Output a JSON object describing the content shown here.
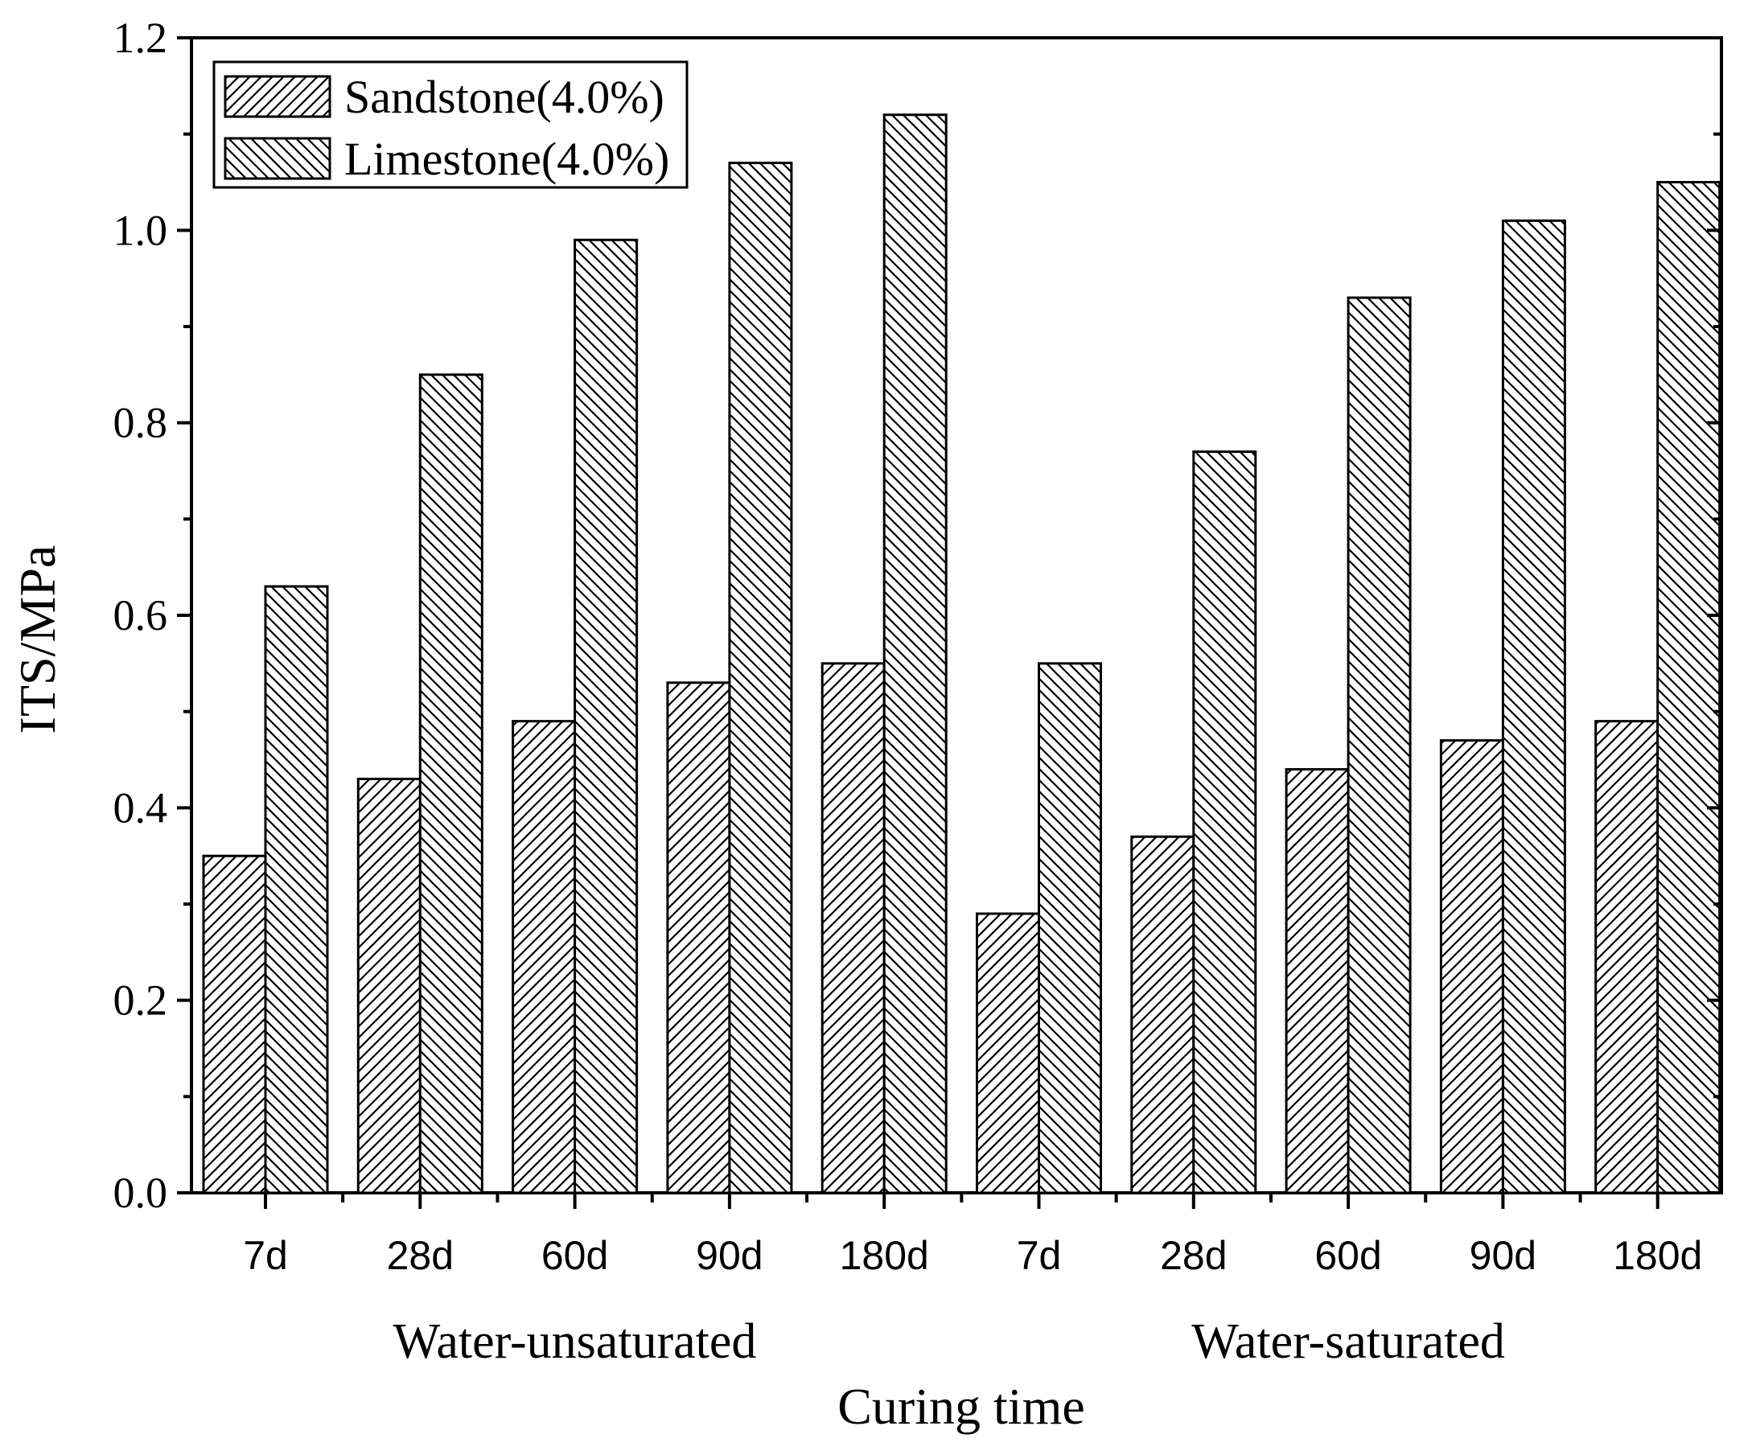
{
  "chart_data": {
    "type": "bar",
    "title": "",
    "xlabel": "Curing time",
    "ylabel": "ITS/MPa",
    "ylim": [
      0,
      1.2
    ],
    "yticks": [
      "0.0",
      "0.2",
      "0.4",
      "0.6",
      "0.8",
      "1.0",
      "1.2"
    ],
    "grid": false,
    "legend_position": "top-left",
    "categories": [
      "7d",
      "28d",
      "60d",
      "90d",
      "180d",
      "7d",
      "28d",
      "60d",
      "90d",
      "180d"
    ],
    "groups": [
      {
        "label": "Water-unsaturated",
        "start": 0,
        "end": 4
      },
      {
        "label": "Water-saturated",
        "start": 5,
        "end": 9
      }
    ],
    "series": [
      {
        "name": "Sandstone(4.0%)",
        "pattern": "forward-hatch",
        "values": [
          0.35,
          0.43,
          0.49,
          0.53,
          0.55,
          0.29,
          0.37,
          0.44,
          0.47,
          0.49
        ]
      },
      {
        "name": "Limestone(4.0%)",
        "pattern": "back-hatch",
        "values": [
          0.63,
          0.85,
          0.99,
          1.07,
          1.12,
          0.55,
          0.77,
          0.93,
          1.01,
          1.05
        ]
      }
    ]
  }
}
